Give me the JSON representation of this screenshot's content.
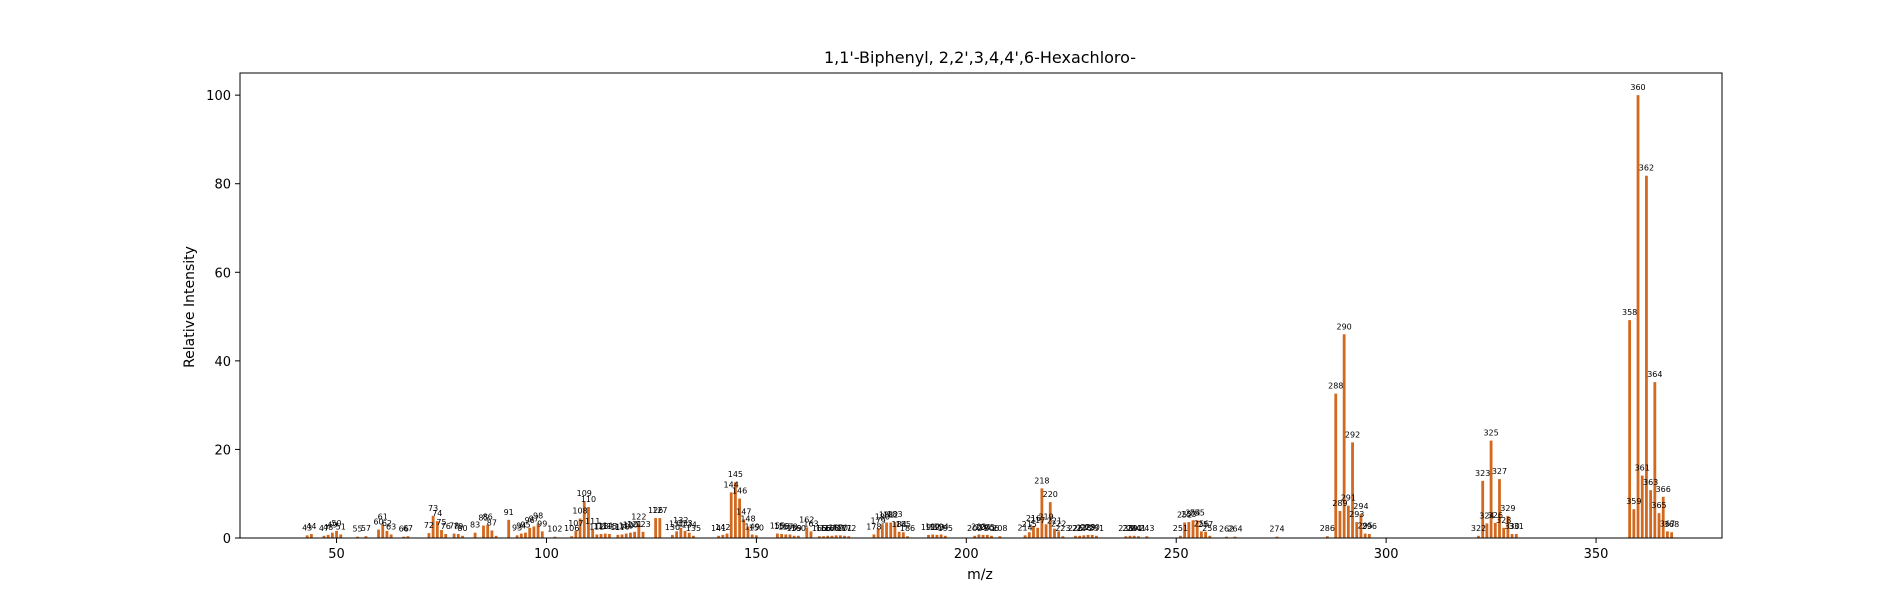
{
  "chart_data": {
    "type": "bar",
    "title": "1,1'-Biphenyl, 2,2',3,4,4',6-Hexachloro-",
    "xlabel": "m/z",
    "ylabel": "Relative Intensity",
    "xlim": [
      27,
      380
    ],
    "ylim": [
      0,
      105
    ],
    "xticks": [
      50,
      100,
      150,
      200,
      250,
      300,
      350
    ],
    "yticks": [
      0,
      20,
      40,
      60,
      80,
      100
    ],
    "grid": false,
    "bar_color": "#d2691e",
    "peaks": [
      [
        43,
        0.6
      ],
      [
        44,
        0.9
      ],
      [
        47,
        0.5
      ],
      [
        48,
        0.7
      ],
      [
        49,
        1.2
      ],
      [
        50,
        1.6
      ],
      [
        51,
        0.8
      ],
      [
        55,
        0.3
      ],
      [
        57,
        0.4
      ],
      [
        60,
        1.9
      ],
      [
        61,
        3.0
      ],
      [
        62,
        1.6
      ],
      [
        63,
        0.8
      ],
      [
        66,
        0.3
      ],
      [
        67,
        0.4
      ],
      [
        72,
        1.1
      ],
      [
        73,
        5.0
      ],
      [
        74,
        3.8
      ],
      [
        75,
        1.8
      ],
      [
        76,
        0.9
      ],
      [
        78,
        1.0
      ],
      [
        79,
        0.9
      ],
      [
        80,
        0.5
      ],
      [
        83,
        1.2
      ],
      [
        85,
        2.8
      ],
      [
        86,
        3.0
      ],
      [
        87,
        1.7
      ],
      [
        88,
        0.5
      ],
      [
        91,
        4.1
      ],
      [
        93,
        0.6
      ],
      [
        94,
        1.0
      ],
      [
        95,
        1.2
      ],
      [
        96,
        2.3
      ],
      [
        97,
        2.6
      ],
      [
        98,
        3.3
      ],
      [
        99,
        1.5
      ],
      [
        102,
        0.3
      ],
      [
        106,
        0.4
      ],
      [
        107,
        1.6
      ],
      [
        108,
        4.4
      ],
      [
        109,
        8.3
      ],
      [
        110,
        7.0
      ],
      [
        111,
        2.0
      ],
      [
        112,
        0.8
      ],
      [
        113,
        0.9
      ],
      [
        114,
        1.0
      ],
      [
        115,
        0.9
      ],
      [
        117,
        0.7
      ],
      [
        118,
        0.8
      ],
      [
        119,
        1.0
      ],
      [
        120,
        1.2
      ],
      [
        121,
        1.4
      ],
      [
        122,
        3.1
      ],
      [
        123,
        1.4
      ],
      [
        126,
        4.5
      ],
      [
        127,
        4.5
      ],
      [
        130,
        0.7
      ],
      [
        131,
        1.5
      ],
      [
        132,
        2.3
      ],
      [
        133,
        1.6
      ],
      [
        134,
        1.2
      ],
      [
        135,
        0.5
      ],
      [
        141,
        0.5
      ],
      [
        142,
        0.7
      ],
      [
        143,
        1.0
      ],
      [
        144,
        10.3
      ],
      [
        145,
        12.6
      ],
      [
        146,
        8.9
      ],
      [
        147,
        4.2
      ],
      [
        148,
        2.6
      ],
      [
        149,
        0.8
      ],
      [
        150,
        0.6
      ],
      [
        155,
        1.0
      ],
      [
        156,
        0.9
      ],
      [
        157,
        0.8
      ],
      [
        158,
        0.8
      ],
      [
        159,
        0.5
      ],
      [
        160,
        0.5
      ],
      [
        162,
        2.4
      ],
      [
        163,
        1.5
      ],
      [
        165,
        0.4
      ],
      [
        166,
        0.4
      ],
      [
        167,
        0.5
      ],
      [
        168,
        0.5
      ],
      [
        169,
        0.6
      ],
      [
        170,
        0.6
      ],
      [
        171,
        0.5
      ],
      [
        172,
        0.4
      ],
      [
        178,
        0.8
      ],
      [
        179,
        2.2
      ],
      [
        180,
        3.1
      ],
      [
        181,
        3.5
      ],
      [
        182,
        3.5
      ],
      [
        183,
        3.6
      ],
      [
        184,
        1.4
      ],
      [
        185,
        1.3
      ],
      [
        186,
        0.4
      ],
      [
        191,
        0.7
      ],
      [
        192,
        0.8
      ],
      [
        193,
        0.7
      ],
      [
        194,
        0.8
      ],
      [
        195,
        0.5
      ],
      [
        202,
        0.5
      ],
      [
        203,
        0.8
      ],
      [
        204,
        0.7
      ],
      [
        205,
        0.7
      ],
      [
        206,
        0.5
      ],
      [
        208,
        0.4
      ],
      [
        214,
        0.6
      ],
      [
        215,
        1.3
      ],
      [
        216,
        2.7
      ],
      [
        217,
        2.3
      ],
      [
        218,
        11.2
      ],
      [
        219,
        3.1
      ],
      [
        220,
        8.1
      ],
      [
        221,
        2.1
      ],
      [
        222,
        1.5
      ],
      [
        223,
        0.4
      ],
      [
        226,
        0.5
      ],
      [
        227,
        0.5
      ],
      [
        228,
        0.6
      ],
      [
        229,
        0.7
      ],
      [
        230,
        0.7
      ],
      [
        231,
        0.5
      ],
      [
        238,
        0.4
      ],
      [
        239,
        0.5
      ],
      [
        240,
        0.5
      ],
      [
        241,
        0.4
      ],
      [
        243,
        0.4
      ],
      [
        251,
        0.5
      ],
      [
        252,
        3.5
      ],
      [
        253,
        3.6
      ],
      [
        254,
        4.0
      ],
      [
        255,
        4.0
      ],
      [
        256,
        1.5
      ],
      [
        257,
        1.4
      ],
      [
        258,
        0.5
      ],
      [
        262,
        0.3
      ],
      [
        264,
        0.3
      ],
      [
        274,
        0.3
      ],
      [
        286,
        0.4
      ],
      [
        288,
        32.6
      ],
      [
        289,
        6.1
      ],
      [
        290,
        46.0
      ],
      [
        291,
        7.3
      ],
      [
        292,
        21.6
      ],
      [
        293,
        3.6
      ],
      [
        294,
        5.4
      ],
      [
        295,
        1.0
      ],
      [
        296,
        0.9
      ],
      [
        322,
        0.5
      ],
      [
        323,
        12.9
      ],
      [
        324,
        3.3
      ],
      [
        325,
        22.0
      ],
      [
        326,
        3.4
      ],
      [
        327,
        13.3
      ],
      [
        328,
        2.3
      ],
      [
        329,
        5.0
      ],
      [
        330,
        0.9
      ],
      [
        331,
        0.9
      ],
      [
        358,
        49.2
      ],
      [
        359,
        6.5
      ],
      [
        360,
        100.0
      ],
      [
        361,
        14.1
      ],
      [
        362,
        81.8
      ],
      [
        363,
        10.8
      ],
      [
        364,
        35.2
      ],
      [
        365,
        5.6
      ],
      [
        366,
        9.3
      ],
      [
        367,
        1.5
      ],
      [
        368,
        1.3
      ]
    ],
    "labels": [
      [
        43,
        0.6,
        "43"
      ],
      [
        44,
        0.9,
        "44"
      ],
      [
        47,
        0.5,
        "47"
      ],
      [
        48,
        0.7,
        "48"
      ],
      [
        49,
        1.2,
        "49"
      ],
      [
        50,
        1.6,
        "50"
      ],
      [
        51,
        0.8,
        "51"
      ],
      [
        55,
        0.3,
        "55"
      ],
      [
        57,
        0.4,
        "57"
      ],
      [
        60,
        1.9,
        "60"
      ],
      [
        61,
        3.0,
        "61"
      ],
      [
        62,
        1.6,
        "62"
      ],
      [
        63,
        0.8,
        "63"
      ],
      [
        66,
        0.3,
        "66"
      ],
      [
        67,
        0.4,
        "67"
      ],
      [
        72,
        1.1,
        "72"
      ],
      [
        73,
        5.0,
        "73"
      ],
      [
        74,
        3.8,
        "74"
      ],
      [
        75,
        1.8,
        "75"
      ],
      [
        76,
        0.9,
        "76"
      ],
      [
        78,
        1.0,
        "78"
      ],
      [
        79,
        0.9,
        "79"
      ],
      [
        80,
        0.5,
        "80"
      ],
      [
        83,
        1.2,
        "83"
      ],
      [
        85,
        2.8,
        "85"
      ],
      [
        86,
        3.0,
        "86"
      ],
      [
        87,
        1.7,
        "87"
      ],
      [
        91,
        4.1,
        "91"
      ],
      [
        93,
        0.6,
        "93"
      ],
      [
        94,
        1.0,
        "94"
      ],
      [
        95,
        1.2,
        "95"
      ],
      [
        96,
        2.3,
        "96"
      ],
      [
        97,
        2.6,
        "97"
      ],
      [
        98,
        3.3,
        "98"
      ],
      [
        99,
        1.5,
        "99"
      ],
      [
        102,
        0.3,
        "102"
      ],
      [
        106,
        0.4,
        "106"
      ],
      [
        107,
        1.6,
        "107"
      ],
      [
        108,
        4.4,
        "108"
      ],
      [
        109,
        8.3,
        "109"
      ],
      [
        110,
        7.0,
        "110"
      ],
      [
        111,
        2.0,
        "111"
      ],
      [
        112,
        0.8,
        "112"
      ],
      [
        113,
        0.9,
        "113"
      ],
      [
        114,
        1.0,
        "114"
      ],
      [
        115,
        0.9,
        "115"
      ],
      [
        117,
        0.7,
        "117"
      ],
      [
        118,
        0.8,
        "118"
      ],
      [
        119,
        1.0,
        "119"
      ],
      [
        120,
        1.2,
        "120"
      ],
      [
        121,
        1.4,
        "121"
      ],
      [
        122,
        3.1,
        "122"
      ],
      [
        123,
        1.4,
        "123"
      ],
      [
        126,
        4.5,
        "126"
      ],
      [
        127,
        4.5,
        "127"
      ],
      [
        130,
        0.7,
        "130"
      ],
      [
        131,
        1.5,
        "131"
      ],
      [
        132,
        2.3,
        "132"
      ],
      [
        133,
        1.6,
        "133"
      ],
      [
        134,
        1.2,
        "134"
      ],
      [
        135,
        0.5,
        "135"
      ],
      [
        141,
        0.5,
        "141"
      ],
      [
        142,
        0.7,
        "142"
      ],
      [
        144,
        10.3,
        "144"
      ],
      [
        145,
        12.6,
        "145"
      ],
      [
        146,
        8.9,
        "146"
      ],
      [
        147,
        4.2,
        "147"
      ],
      [
        148,
        2.6,
        "148"
      ],
      [
        149,
        0.8,
        "149"
      ],
      [
        150,
        0.6,
        "150"
      ],
      [
        155,
        1.0,
        "155"
      ],
      [
        156,
        0.9,
        "156"
      ],
      [
        157,
        0.8,
        "157"
      ],
      [
        158,
        0.8,
        "158"
      ],
      [
        159,
        0.5,
        "159"
      ],
      [
        160,
        0.5,
        "160"
      ],
      [
        162,
        2.4,
        "162"
      ],
      [
        163,
        1.5,
        "163"
      ],
      [
        165,
        0.4,
        "165"
      ],
      [
        166,
        0.4,
        "166"
      ],
      [
        167,
        0.5,
        "167"
      ],
      [
        168,
        0.5,
        "168"
      ],
      [
        169,
        0.6,
        "169"
      ],
      [
        170,
        0.6,
        "170"
      ],
      [
        171,
        0.5,
        "171"
      ],
      [
        172,
        0.4,
        "172"
      ],
      [
        178,
        0.8,
        "178"
      ],
      [
        179,
        2.2,
        "179"
      ],
      [
        180,
        3.1,
        "180"
      ],
      [
        181,
        3.5,
        "181"
      ],
      [
        182,
        3.5,
        "182"
      ],
      [
        183,
        3.6,
        "183"
      ],
      [
        184,
        1.4,
        "184"
      ],
      [
        185,
        1.3,
        "185"
      ],
      [
        186,
        0.4,
        "186"
      ],
      [
        191,
        0.7,
        "191"
      ],
      [
        192,
        0.8,
        "192"
      ],
      [
        193,
        0.7,
        "193"
      ],
      [
        194,
        0.8,
        "194"
      ],
      [
        195,
        0.5,
        "195"
      ],
      [
        202,
        0.5,
        "202"
      ],
      [
        203,
        0.8,
        "203"
      ],
      [
        204,
        0.7,
        "204"
      ],
      [
        205,
        0.7,
        "205"
      ],
      [
        206,
        0.5,
        "206"
      ],
      [
        208,
        0.4,
        "208"
      ],
      [
        214,
        0.6,
        "214"
      ],
      [
        215,
        1.3,
        "215"
      ],
      [
        216,
        2.7,
        "216"
      ],
      [
        217,
        2.3,
        "217"
      ],
      [
        218,
        11.2,
        "218"
      ],
      [
        219,
        3.1,
        "219"
      ],
      [
        220,
        8.1,
        "220"
      ],
      [
        221,
        2.1,
        "221"
      ],
      [
        222,
        1.5,
        "222"
      ],
      [
        223,
        0.4,
        "223"
      ],
      [
        226,
        0.5,
        "226"
      ],
      [
        227,
        0.5,
        "227"
      ],
      [
        228,
        0.6,
        "228"
      ],
      [
        229,
        0.7,
        "229"
      ],
      [
        230,
        0.7,
        "230"
      ],
      [
        231,
        0.5,
        "231"
      ],
      [
        238,
        0.4,
        "238"
      ],
      [
        239,
        0.5,
        "239"
      ],
      [
        240,
        0.5,
        "240"
      ],
      [
        241,
        0.4,
        "241"
      ],
      [
        243,
        0.4,
        "243"
      ],
      [
        251,
        0.5,
        "251"
      ],
      [
        252,
        3.5,
        "252"
      ],
      [
        253,
        3.6,
        "253"
      ],
      [
        254,
        4.0,
        "254"
      ],
      [
        255,
        4.0,
        "255"
      ],
      [
        256,
        1.5,
        "256"
      ],
      [
        257,
        1.4,
        "257"
      ],
      [
        258,
        0.5,
        "258"
      ],
      [
        262,
        0.3,
        "262"
      ],
      [
        264,
        0.3,
        "264"
      ],
      [
        274,
        0.3,
        "274"
      ],
      [
        286,
        0.4,
        "286"
      ],
      [
        288,
        32.6,
        "288"
      ],
      [
        289,
        6.1,
        "289"
      ],
      [
        290,
        46.0,
        "290"
      ],
      [
        291,
        7.3,
        "291"
      ],
      [
        292,
        21.6,
        "292"
      ],
      [
        293,
        3.6,
        "293"
      ],
      [
        294,
        5.4,
        "294"
      ],
      [
        295,
        1.0,
        "295"
      ],
      [
        296,
        0.9,
        "296"
      ],
      [
        322,
        0.5,
        "322"
      ],
      [
        323,
        12.9,
        "323"
      ],
      [
        324,
        3.3,
        "324"
      ],
      [
        325,
        22.0,
        "325"
      ],
      [
        326,
        3.4,
        "326"
      ],
      [
        327,
        13.3,
        "327"
      ],
      [
        328,
        2.3,
        "328"
      ],
      [
        329,
        5.0,
        "329"
      ],
      [
        330,
        0.9,
        "330"
      ],
      [
        331,
        0.9,
        "331"
      ],
      [
        358,
        49.2,
        "358"
      ],
      [
        359,
        6.5,
        "359"
      ],
      [
        360,
        100.0,
        "360"
      ],
      [
        361,
        14.1,
        "361"
      ],
      [
        362,
        81.8,
        "362"
      ],
      [
        363,
        10.8,
        "363"
      ],
      [
        364,
        35.2,
        "364"
      ],
      [
        365,
        5.6,
        "365"
      ],
      [
        366,
        9.3,
        "366"
      ],
      [
        367,
        1.5,
        "367"
      ],
      [
        368,
        1.3,
        "368"
      ]
    ]
  }
}
